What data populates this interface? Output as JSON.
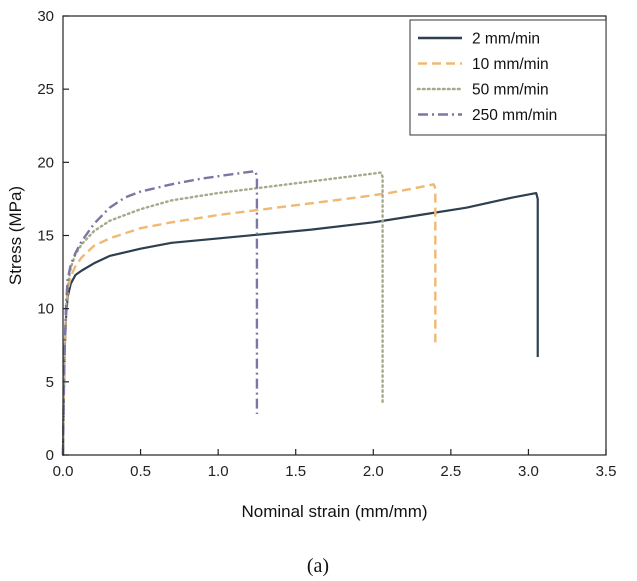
{
  "chart_data": {
    "type": "line",
    "xlabel": "Nominal strain (mm/mm)",
    "ylabel": "Stress (MPa)",
    "xlim": [
      0,
      3.5
    ],
    "ylim": [
      0,
      30
    ],
    "xticks": [
      0,
      0.5,
      1,
      1.5,
      2,
      2.5,
      3,
      3.5
    ],
    "xtick_labels": [
      "0.0",
      "0.5",
      "1.0",
      "1.5",
      "2.0",
      "2.5",
      "3.0",
      "3.5"
    ],
    "yticks": [
      0,
      5,
      10,
      15,
      20,
      25,
      30
    ],
    "ytick_labels": [
      "0",
      "5",
      "10",
      "15",
      "20",
      "25",
      "30"
    ],
    "grid": false,
    "legend_position": "top-right",
    "caption": "(a)",
    "series": [
      {
        "name": "2 mm/min",
        "color": "#2e3f4f",
        "dash": "solid",
        "x": [
          0,
          0.005,
          0.01,
          0.02,
          0.03,
          0.05,
          0.08,
          0.12,
          0.2,
          0.3,
          0.5,
          0.7,
          1.0,
          1.3,
          1.6,
          2.0,
          2.3,
          2.6,
          2.9,
          3.05,
          3.06,
          3.06
        ],
        "y": [
          0,
          4,
          7,
          9.5,
          10.8,
          11.7,
          12.3,
          12.6,
          13.1,
          13.6,
          14.1,
          14.5,
          14.8,
          15.1,
          15.4,
          15.9,
          16.4,
          16.9,
          17.6,
          17.9,
          17.5,
          6.7
        ]
      },
      {
        "name": "10 mm/min",
        "color": "#f0b872",
        "dash": "dashed",
        "x": [
          0,
          0.005,
          0.01,
          0.02,
          0.03,
          0.05,
          0.08,
          0.12,
          0.2,
          0.3,
          0.5,
          0.7,
          1.0,
          1.3,
          1.6,
          1.9,
          2.1,
          2.3,
          2.39,
          2.4,
          2.4
        ],
        "y": [
          0,
          4,
          7,
          9.8,
          11.2,
          12.2,
          12.9,
          13.5,
          14.3,
          14.8,
          15.5,
          15.9,
          16.4,
          16.8,
          17.2,
          17.6,
          17.9,
          18.3,
          18.5,
          18.2,
          7.7
        ]
      },
      {
        "name": "50 mm/min",
        "color": "#a6a88a",
        "dash": "dotted",
        "x": [
          0,
          0.005,
          0.01,
          0.02,
          0.03,
          0.05,
          0.08,
          0.12,
          0.2,
          0.3,
          0.5,
          0.7,
          1.0,
          1.3,
          1.6,
          1.9,
          2.05,
          2.06,
          2.06
        ],
        "y": [
          0,
          4,
          7,
          10,
          11.5,
          12.8,
          13.7,
          14.4,
          15.3,
          16.0,
          16.8,
          17.4,
          17.9,
          18.3,
          18.7,
          19.1,
          19.3,
          19.0,
          3.6
        ]
      },
      {
        "name": "250 mm/min",
        "color": "#7b77a5",
        "dash": "dashdot",
        "x": [
          0,
          0.005,
          0.01,
          0.02,
          0.03,
          0.05,
          0.08,
          0.12,
          0.2,
          0.3,
          0.4,
          0.5,
          0.7,
          0.9,
          1.1,
          1.24,
          1.25,
          1.25
        ],
        "y": [
          0,
          4,
          7,
          10.3,
          12.0,
          13.0,
          13.8,
          14.6,
          15.8,
          16.9,
          17.6,
          18.0,
          18.5,
          18.9,
          19.2,
          19.4,
          19.0,
          2.8
        ]
      }
    ]
  }
}
